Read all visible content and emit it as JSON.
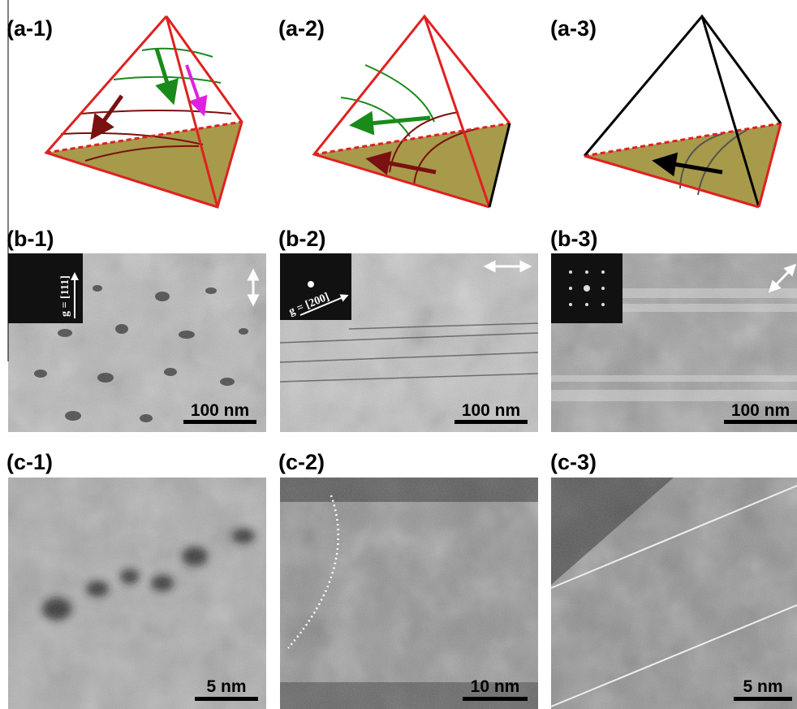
{
  "panels": [
    {
      "label": "(a-1)"
    },
    {
      "label": "(a-2)"
    },
    {
      "label": "(a-3)"
    },
    {
      "label": "(b-1)",
      "scale_bar": "100 nm",
      "inset": "g = [111]"
    },
    {
      "label": "(b-2)",
      "scale_bar": "100 nm",
      "inset": "g = [200]"
    },
    {
      "label": "(b-3)",
      "scale_bar": "100 nm"
    },
    {
      "label": "(c-1)",
      "scale_bar": "5 nm"
    },
    {
      "label": "(c-2)",
      "scale_bar": "10 nm"
    },
    {
      "label": "(c-3)",
      "scale_bar": "5 nm"
    }
  ]
}
